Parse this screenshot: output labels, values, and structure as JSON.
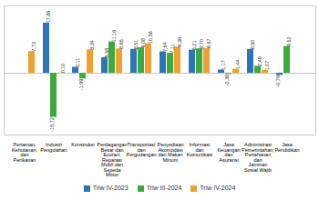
{
  "chart_data": {
    "type": "bar",
    "categories": [
      "Pertanian, Kehutanan, dan Perikanan",
      "Industri Pengolahan",
      "Konstruksi",
      "Perdagangan Besar dan Eceran; Reparasi Mobil dan Sepeda Motor",
      "Transportasi dan Pergudangan",
      "Penyediaan Akomodasi dan Makan Minum",
      "Informasi dan Komunikasi",
      "Jasa Keuangan dan Asuransi",
      "Administrasi Pemerintahan, Pertahanan dan Jaminan Sosial Wajib",
      "Jasa Pendidikan"
    ],
    "series": [
      {
        "name": "Triw IV-2023",
        "color": "#2e75b6",
        "values": [
          null,
          17.89,
          2.11,
          5.58,
          8.51,
          7.64,
          8.21,
          1.17,
          8.5,
          -0.79
        ],
        "value_labels": [
          null,
          "17,89",
          "2,11",
          "5,58",
          "8,51",
          "7,64",
          "8,21",
          "1,17",
          "8,50",
          "-0,79"
        ]
      },
      {
        "name": "Triw III-2024",
        "color": "#3cab3c",
        "values": [
          null,
          -15.72,
          -1.99,
          11.16,
          9.08,
          7.11,
          8.7,
          -0.36,
          2.49,
          9.52
        ],
        "value_labels": [
          null,
          "-15,72",
          "-1,99",
          "11,16",
          "9,08",
          "7,11",
          "8,70",
          "-0,36",
          "2,49",
          "9,52"
        ]
      },
      {
        "name": "Triw IV-2024",
        "color": "#f0a030",
        "values": [
          7.73,
          0.1,
          8.34,
          8.65,
          10.56,
          9.38,
          8.87,
          1.44,
          1.07,
          null
        ],
        "value_labels": [
          "7,73",
          "0,10",
          "8,34",
          "8,65",
          "10,56",
          "9,38",
          "8,87",
          "1,44",
          "1,07",
          null
        ]
      }
    ],
    "ylim": [
      -22,
      24
    ],
    "data_labels": true,
    "tick_labels": "x",
    "legend": "bottom",
    "grid": false
  }
}
